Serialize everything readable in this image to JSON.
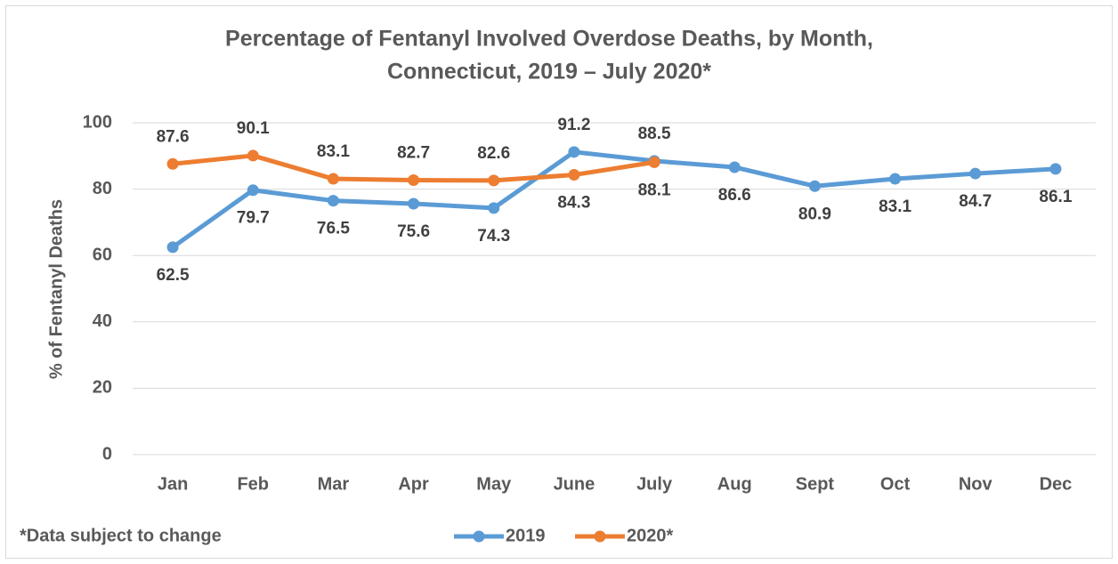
{
  "chart_data": {
    "type": "line",
    "title": [
      "Percentage of Fentanyl Involved Overdose Deaths, by Month,",
      "Connecticut, 2019 – July 2020*"
    ],
    "y_label": "% of Fentanyl Deaths",
    "footnote": "*Data subject to change",
    "categories": [
      "Jan",
      "Feb",
      "Mar",
      "Apr",
      "May",
      "June",
      "July",
      "Aug",
      "Sept",
      "Oct",
      "Nov",
      "Dec"
    ],
    "series": [
      {
        "name": "2019",
        "color": "#5b9bd5",
        "values": [
          62.5,
          79.7,
          76.5,
          75.6,
          74.3,
          91.2,
          88.5,
          86.6,
          80.9,
          83.1,
          84.7,
          86.1
        ]
      },
      {
        "name": "2020*",
        "color": "#ed7d31",
        "values": [
          87.6,
          90.1,
          83.1,
          82.7,
          82.6,
          84.3,
          88.1,
          null,
          null,
          null,
          null,
          null
        ]
      }
    ],
    "ylim": [
      0,
      100
    ],
    "yticks": [
      0,
      20,
      40,
      60,
      80,
      100
    ],
    "grid": true,
    "legend": "bottom"
  }
}
